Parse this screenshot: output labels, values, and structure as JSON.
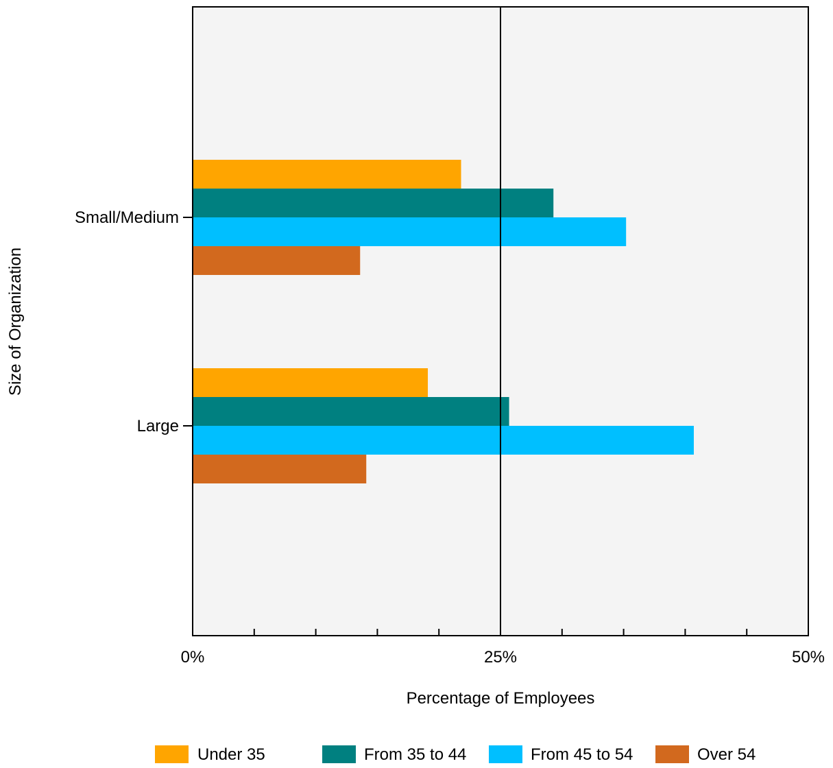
{
  "chart_data": {
    "type": "bar",
    "orientation": "horizontal",
    "title": "",
    "xlabel": "Percentage of Employees",
    "ylabel": "Size of Organization",
    "categories": [
      "Small/Medium",
      "Large"
    ],
    "xlim": [
      0,
      50
    ],
    "xtick_labels": [
      "0%",
      "25%",
      "50%"
    ],
    "xtick_values": [
      0,
      25,
      50
    ],
    "minor_tick_values": [
      5,
      10,
      15,
      20,
      30,
      35,
      40,
      45
    ],
    "grid": "vertical line at 25%",
    "legend_position": "bottom",
    "plot_background": "#f4f4f4",
    "series": [
      {
        "name": "Under 35",
        "color": "#ffa500",
        "values": [
          21.8,
          19.1
        ]
      },
      {
        "name": "From 35 to 44",
        "color": "#008080",
        "values": [
          29.3,
          25.7
        ]
      },
      {
        "name": "From 45 to 54",
        "color": "#00bfff",
        "values": [
          35.2,
          40.7
        ]
      },
      {
        "name": "Over 54",
        "color": "#d2691e",
        "values": [
          13.6,
          14.1
        ]
      }
    ]
  }
}
